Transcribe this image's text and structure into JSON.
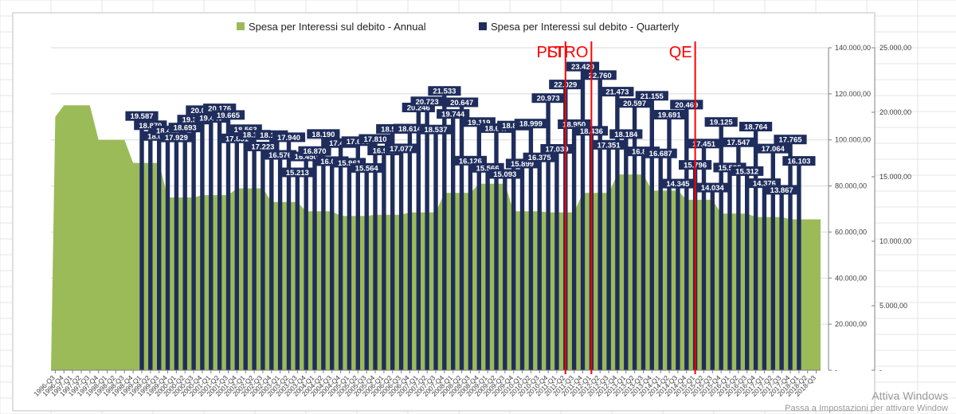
{
  "chart_data": {
    "type": "bar",
    "legend": [
      {
        "label": "Spesa per Interessi sul debito - Annual",
        "color": "#9bbb59"
      },
      {
        "label": "Spesa per Interessi sul debito - Quarterly",
        "color": "#1f2d5c"
      }
    ],
    "legend_position": "top",
    "colors": {
      "annual": "#9bbb59",
      "quarterly": "#1f2d5c",
      "markers": "#ff0000",
      "gridline": "#d9d9d9"
    },
    "categories": [
      "1996-Q3",
      "1996-Q4",
      "1997-Q1",
      "1997-Q2",
      "1997-Q3",
      "1997-Q4",
      "1998-Q1",
      "1998-Q2",
      "1998-Q3",
      "1998-Q4",
      "1999-Q1",
      "1999-Q2",
      "1999-Q3",
      "1999-Q4",
      "2000-Q1",
      "2000-Q2",
      "2000-Q3",
      "2000-Q4",
      "2001-Q1",
      "2001-Q2",
      "2001-Q3",
      "2001-Q4",
      "2002-Q1",
      "2002-Q2",
      "2002-Q3",
      "2002-Q4",
      "2003-Q1",
      "2003-Q2",
      "2003-Q3",
      "2003-Q4",
      "2004-Q1",
      "2004-Q2",
      "2004-Q3",
      "2004-Q4",
      "2005-Q1",
      "2005-Q2",
      "2005-Q3",
      "2005-Q4",
      "2006-Q1",
      "2006-Q2",
      "2006-Q3",
      "2006-Q4",
      "2007-Q1",
      "2007-Q2",
      "2007-Q3",
      "2007-Q4",
      "2008-Q1",
      "2008-Q2",
      "2008-Q3",
      "2008-Q4",
      "2009-Q1",
      "2009-Q2",
      "2009-Q3",
      "2009-Q4",
      "2010-Q1",
      "2010-Q2",
      "2010-Q3",
      "2010-Q4",
      "2011-Q1",
      "2011-Q2",
      "2011-Q3",
      "2011-Q4",
      "2012-Q1",
      "2012-Q2",
      "2012-Q3",
      "2012-Q4",
      "2013-Q1",
      "2013-Q2",
      "2013-Q3",
      "2013-Q4",
      "2014-Q1",
      "2014-Q2",
      "2014-Q3",
      "2014-Q4",
      "2015-Q1",
      "2015-Q2",
      "2015-Q3",
      "2015-Q4",
      "2016-Q1",
      "2016-Q2",
      "2016-Q3",
      "2016-Q4",
      "2017-Q1",
      "2017-Q2",
      "2017-Q3",
      "2017-Q4",
      "2018-Q1",
      "2018-Q2",
      "2018-Q3"
    ],
    "annual": {
      "name": "Spesa per Interessi sul debito - Annual",
      "axis": "primary",
      "values": [
        110000,
        115000,
        115000,
        115000,
        115000,
        100000,
        100000,
        100000,
        100000,
        90000,
        90000,
        90000,
        90000,
        75000,
        75000,
        75000,
        75000,
        76000,
        76000,
        76000,
        76000,
        79000,
        79000,
        79000,
        79000,
        73000,
        73000,
        73000,
        73000,
        69000,
        69000,
        69000,
        69000,
        67000,
        67000,
        67000,
        67000,
        67500,
        67500,
        67500,
        67500,
        68500,
        68500,
        68500,
        68500,
        77000,
        77000,
        77000,
        77000,
        81000,
        81000,
        81000,
        81000,
        69000,
        69000,
        69000,
        69000,
        68500,
        68500,
        68500,
        68500,
        77000,
        77000,
        77000,
        77000,
        85000,
        85000,
        85000,
        85000,
        78000,
        78000,
        78000,
        78000,
        74000,
        74000,
        74000,
        74000,
        68000,
        68000,
        68000,
        68000,
        66500,
        66500,
        66500,
        66500,
        65500,
        65500,
        65500,
        65500
      ]
    },
    "quarterly": {
      "name": "Spesa per Interessi sul debito - Quarterly",
      "axis": "secondary",
      "start_index": 10,
      "values": [
        19587,
        18870,
        18039,
        18460,
        17929,
        18693,
        19307,
        20036,
        19440,
        20176,
        19665,
        17851,
        18563,
        18136,
        17223,
        18106,
        16576,
        17940,
        15213,
        16450,
        16870,
        18190,
        16088,
        17488,
        15961,
        17638,
        15564,
        17810,
        16911,
        18585,
        17077,
        18614,
        20246,
        20723,
        18537,
        21533,
        19744,
        20647,
        16126,
        19119,
        15566,
        18647,
        15093,
        18845,
        15899,
        18999,
        16375,
        20973,
        17039,
        22029,
        18950,
        23420,
        18436,
        22760,
        17351,
        21473,
        18184,
        20597,
        16843,
        21155,
        16687,
        19691,
        14345,
        20469,
        15796,
        17451,
        14034,
        19125,
        15595,
        17547,
        15312,
        18764,
        14376,
        17064,
        13867,
        17765,
        16103
      ],
      "labels": [
        "19.587",
        "18.870",
        "18.039",
        "18.460",
        "17.929",
        "18.693",
        "19.307",
        "20.036",
        "19.440",
        "20.176",
        "19.665",
        "17.851",
        "18.563",
        "18.136",
        "17.223",
        "18.106",
        "16.576",
        "17.940",
        "15.213",
        "16.450",
        "16.870",
        "18.190",
        "16.088",
        "17.488",
        "15.961",
        "17.638",
        "15.564",
        "17.810",
        "16.911",
        "18.585",
        "17.077",
        "18.614",
        "20.246",
        "20.723",
        "18.537",
        "21.533",
        "19.744",
        "20.647",
        "16.126",
        "19.119",
        "15.566",
        "18.647",
        "15.093",
        "18.845",
        "15.899",
        "18.999",
        "16.375",
        "20.973",
        "17.039",
        "22.029",
        "18.950",
        "23.420",
        "18.436",
        "22.760",
        "17.351",
        "21.473",
        "18.184",
        "20.597",
        "16.843",
        "21.155",
        "16.687",
        "19.691",
        "14.345",
        "20.469",
        "15.796",
        "17.451",
        "14.034",
        "19.125",
        "15.595",
        "17.547",
        "15.312",
        "18.764",
        "14.376",
        "17.064",
        "13.867",
        "17.765",
        "16.103"
      ]
    },
    "primary_axis": {
      "min": 0,
      "max": 140000,
      "ticks": [
        0,
        20000,
        40000,
        60000,
        80000,
        100000,
        120000,
        140000
      ],
      "tick_labels": [
        "-",
        "20.000,00",
        "40.000,00",
        "60.000,00",
        "80.000,00",
        "100.000,00",
        "120.000,00",
        "140.000,00"
      ]
    },
    "secondary_axis": {
      "min": 0,
      "max": 25000,
      "ticks": [
        0,
        5000,
        10000,
        15000,
        20000,
        25000
      ],
      "tick_labels": [
        "-",
        "5.000,00",
        "10.000,00",
        "15.000,00",
        "20.000,00",
        "25.000,00"
      ]
    },
    "markers": [
      {
        "label": "PSI",
        "at": "2011-Q2"
      },
      {
        "label": "LTRO",
        "at": "2012-Q1"
      },
      {
        "label": "QE",
        "at": "2015-Q1"
      }
    ]
  },
  "watermark": {
    "title": "Attiva Windows",
    "subtitle": "Passa a Impostazioni per attivare Window"
  }
}
